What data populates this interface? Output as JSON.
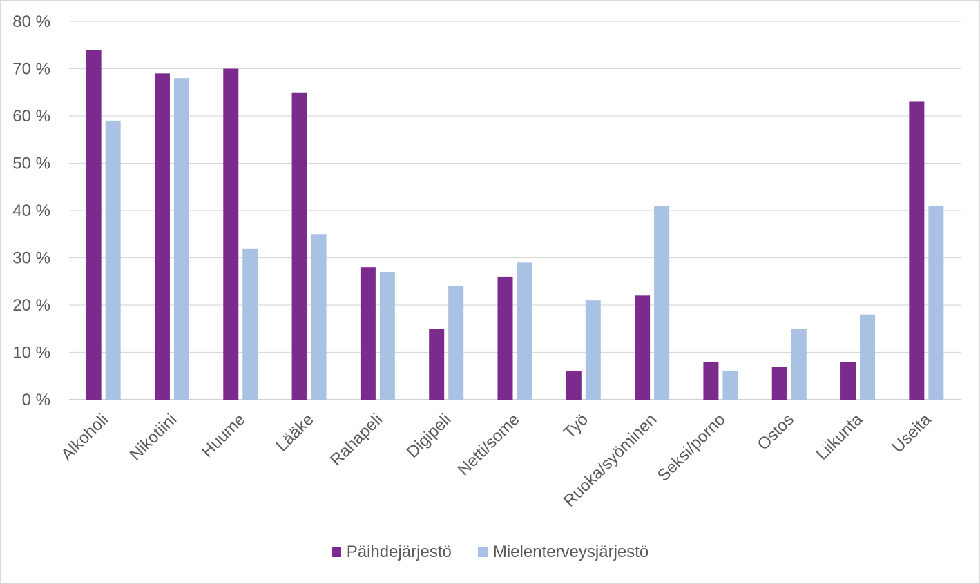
{
  "chart_data": {
    "type": "bar",
    "categories": [
      "Alkoholi",
      "Nikotiini",
      "Huume",
      "Lääke",
      "Rahapeli",
      "Digipeli",
      "Netti/some",
      "Työ",
      "Ruoka/syöminen",
      "Seksi/porno",
      "Ostos",
      "Liikunta",
      "Useita"
    ],
    "series": [
      {
        "name": "Päihdejärjestö",
        "color": "#7b2a8e",
        "values": [
          74,
          69,
          70,
          65,
          28,
          15,
          26,
          6,
          22,
          8,
          7,
          8,
          63
        ]
      },
      {
        "name": "Mielenterveysjärjestö",
        "color": "#a9c1e3",
        "values": [
          59,
          68,
          32,
          35,
          27,
          24,
          29,
          21,
          41,
          6,
          15,
          18,
          41
        ]
      }
    ],
    "yticks": [
      "0 %",
      "10 %",
      "20 %",
      "30 %",
      "40 %",
      "50 %",
      "60 %",
      "70 %",
      "80 %"
    ],
    "ylim": [
      0,
      80
    ],
    "grid": true,
    "legend_position": "bottom",
    "title": "",
    "xlabel": "",
    "ylabel": ""
  }
}
